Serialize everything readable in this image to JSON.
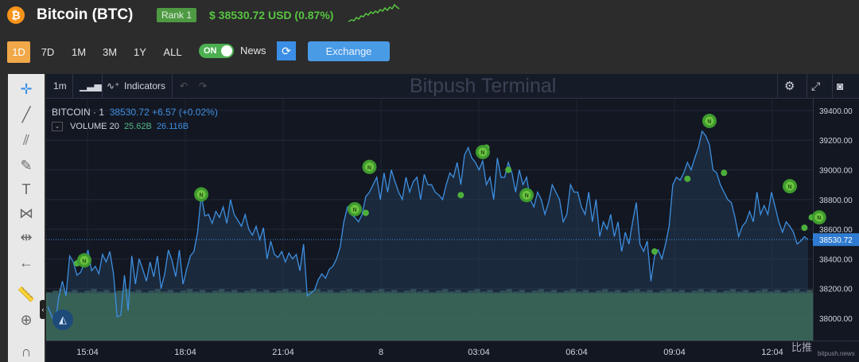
{
  "header": {
    "coin_icon": "bitcoin-icon",
    "title": "Bitcoin (BTC)",
    "rank": "Rank 1",
    "price": "$ 38530.72 USD (0.87%)"
  },
  "controls": {
    "ranges": [
      "1D",
      "7D",
      "1M",
      "3M",
      "1Y",
      "ALL"
    ],
    "active_range": "1D",
    "toggle_label": "ON",
    "news_label": "News",
    "exchange_label": "Exchange"
  },
  "toolbar": {
    "interval": "1m",
    "indicators_label": "Indicators",
    "watermark": "Bitpush Terminal"
  },
  "legend": {
    "symbol": "BITCOIN · 1",
    "price": "38530.72",
    "change": "+6.57 (+0.02%)",
    "volume_label": "VOLUME 20",
    "volume_1": "25.62B",
    "volume_2": "26.116B"
  },
  "brand": {
    "name": "比推",
    "sub": "bitpush.news"
  },
  "colors": {
    "line": "#3d8fe0",
    "news": "#4caf3c",
    "volume": "#3f6e5e",
    "price_tag": "#2f7bd1"
  },
  "chart_data": {
    "type": "line",
    "y_ticks": [
      "39400.00",
      "39200.00",
      "39000.00",
      "38800.00",
      "38600.00",
      "38400.00",
      "38200.00",
      "38000.00"
    ],
    "x_ticks": [
      "15:04",
      "18:04",
      "21:04",
      "8",
      "03:04",
      "06:04",
      "09:04",
      "12:04"
    ],
    "ylim": [
      37850,
      39480
    ],
    "last_price": "38530.72",
    "series": [
      {
        "values": [
          38080,
          38020,
          37960,
          38140,
          38250,
          38150,
          38420,
          38380,
          38290,
          38310,
          38370,
          38460,
          38320,
          38350,
          38300,
          38430,
          38380,
          38450,
          38300,
          38010,
          38020,
          38290,
          38050,
          38420,
          38230,
          38400,
          38330,
          38250,
          38380,
          38280,
          38420,
          38200,
          38300,
          38460,
          38390,
          38280,
          38460,
          38230,
          38330,
          38420,
          38450,
          38580,
          38830,
          38690,
          38700,
          38640,
          38720,
          38680,
          38750,
          38640,
          38800,
          38700,
          38660,
          38620,
          38700,
          38600,
          38560,
          38620,
          38530,
          38610,
          38400,
          38520,
          38430,
          38410,
          38450,
          38380,
          38440,
          38400,
          38430,
          38320,
          38500,
          38150,
          38170,
          38190,
          38260,
          38300,
          38270,
          38330,
          38350,
          38400,
          38480,
          38650,
          38750,
          38700,
          38680,
          38650,
          38700,
          38820,
          38850,
          38900,
          38950,
          38800,
          38980,
          38850,
          39000,
          38920,
          38850,
          38800,
          38950,
          38850,
          38920,
          38950,
          38800,
          38970,
          38900,
          38900,
          38850,
          38830,
          38800,
          38900,
          38980,
          38950,
          39050,
          38900,
          39100,
          39150,
          39080,
          39050,
          39000,
          39060,
          38900,
          38950,
          38800,
          39080,
          38950,
          38950,
          39050,
          38980,
          38850,
          39000,
          38900,
          38950,
          38800,
          38750,
          38850,
          38800,
          38700,
          38780,
          38900,
          38850,
          38800,
          38650,
          38700,
          38900,
          38850,
          38850,
          38750,
          38700,
          38850,
          38650,
          38800,
          38550,
          38650,
          38600,
          38700,
          38550,
          38650,
          38450,
          38580,
          38500,
          38650,
          38780,
          38500,
          38450,
          38520,
          38250,
          38420,
          38460,
          38400,
          38500,
          38620,
          38900,
          38950,
          38930,
          38980,
          39050,
          39000,
          39080,
          39150,
          39260,
          39230,
          39170,
          39000,
          38980,
          38900,
          38850,
          38800,
          38780,
          38680,
          38550,
          38620,
          38650,
          38720,
          38650,
          38850,
          38700,
          38760,
          38700,
          38850,
          38750,
          38650,
          38580,
          38650,
          38620,
          38580,
          38500,
          38520,
          38550,
          38530
        ]
      }
    ],
    "volume": [
      38170,
      38205
    ],
    "news_markers": [
      {
        "index": 10,
        "y": 38390,
        "label": "N"
      },
      {
        "index": 42,
        "y": 38835,
        "label": "N"
      },
      {
        "index": 84,
        "y": 38735,
        "label": "N"
      },
      {
        "index": 88,
        "y": 39020,
        "label": "N"
      },
      {
        "index": 119,
        "y": 39120,
        "label": "N"
      },
      {
        "index": 131,
        "y": 38830,
        "label": "N"
      },
      {
        "index": 181,
        "y": 39330,
        "label": "N"
      },
      {
        "index": 203,
        "y": 38890,
        "label": "N"
      },
      {
        "index": 211,
        "y": 38680,
        "label": "N"
      }
    ],
    "small_markers": [
      {
        "index": 8,
        "y": 38370
      },
      {
        "index": 87,
        "y": 38710
      },
      {
        "index": 113,
        "y": 38830
      },
      {
        "index": 120,
        "y": 39150
      },
      {
        "index": 126,
        "y": 39000
      },
      {
        "index": 166,
        "y": 38450
      },
      {
        "index": 175,
        "y": 38940
      },
      {
        "index": 185,
        "y": 38980
      },
      {
        "index": 207,
        "y": 38610
      },
      {
        "index": 209,
        "y": 38680
      }
    ]
  }
}
